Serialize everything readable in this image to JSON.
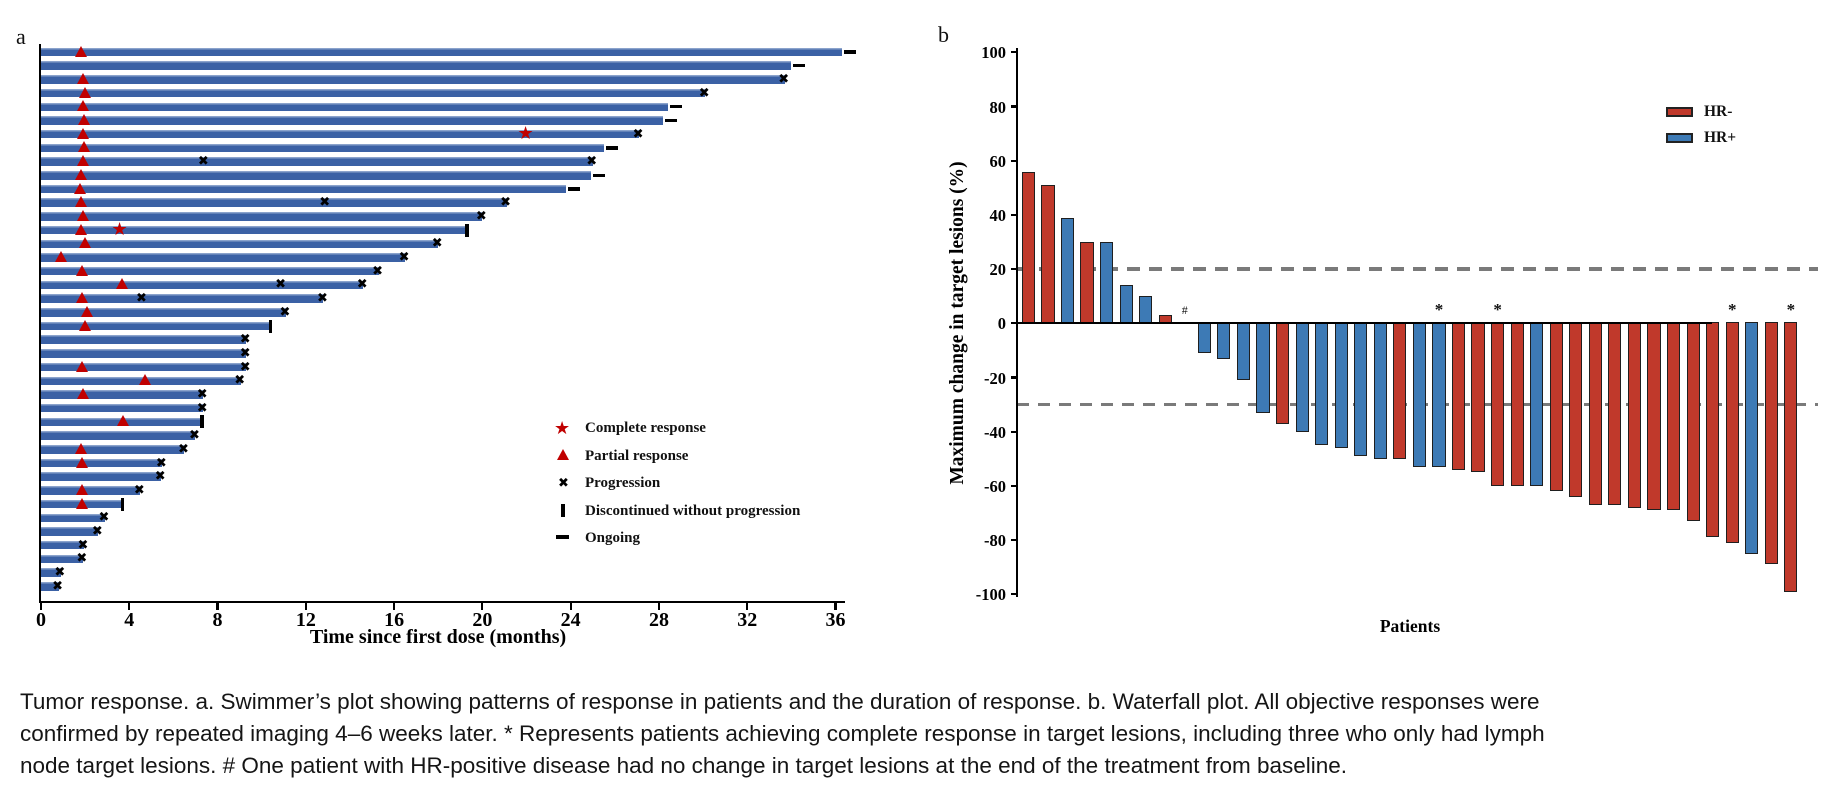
{
  "panels": {
    "a_label": "a",
    "b_label": "b"
  },
  "colors": {
    "swimmer_bar": "#3b61a5",
    "response_marker": "#c00000",
    "hr_negative": "#c0392b",
    "hr_positive": "#3d7ab5",
    "ref_line": "#7a7a7a",
    "axis": "#000000"
  },
  "caption": {
    "lines": [
      "Tumor response. a. Swimmer’s plot showing patterns of response in patients and the duration of response. b. Waterfall plot. All objective responses were",
      "confirmed by repeated imaging 4–6 weeks later. * Represents patients achieving complete response in target lesions, including three who only had lymph",
      "node target lesions. # One patient with HR-positive disease had no change in target lesions at the end of the treatment from baseline."
    ]
  },
  "chart_data": [
    {
      "type": "bar",
      "id": "swimmer-plot",
      "orientation": "horizontal",
      "xlabel": "Time since first dose (months)",
      "xlim": [
        0,
        38
      ],
      "xticks": [
        0,
        4,
        8,
        12,
        16,
        20,
        24,
        28,
        32,
        36
      ],
      "legend": [
        {
          "marker": "star",
          "label": "Complete response"
        },
        {
          "marker": "triangle",
          "label": "Partial response"
        },
        {
          "marker": "x",
          "label": "Progression"
        },
        {
          "marker": "vbar",
          "label": "Discontinued without progression"
        },
        {
          "marker": "dash",
          "label": "Ongoing"
        }
      ],
      "bars": [
        {
          "dur": 36.3,
          "end": "ongoing",
          "marks": [
            [
              "pr",
              1.8
            ]
          ]
        },
        {
          "dur": 34.0,
          "end": "ongoing",
          "marks": []
        },
        {
          "dur": 33.7,
          "end": "prog",
          "marks": [
            [
              "pr",
              1.9
            ]
          ]
        },
        {
          "dur": 30.1,
          "end": "prog",
          "marks": [
            [
              "pr",
              2.0
            ]
          ]
        },
        {
          "dur": 28.4,
          "end": "ongoing",
          "marks": [
            [
              "pr",
              1.9
            ]
          ]
        },
        {
          "dur": 28.2,
          "end": "ongoing",
          "marks": [
            [
              "pr",
              1.95
            ]
          ]
        },
        {
          "dur": 27.1,
          "end": "prog",
          "marks": [
            [
              "pr",
              1.9
            ],
            [
              "cr",
              22
            ]
          ]
        },
        {
          "dur": 25.5,
          "end": "ongoing",
          "marks": [
            [
              "pr",
              1.95
            ]
          ]
        },
        {
          "dur": 25.0,
          "end": "prog",
          "marks": [
            [
              "pr",
              1.9
            ],
            [
              "px",
              7.4
            ]
          ]
        },
        {
          "dur": 24.9,
          "end": "ongoing",
          "marks": [
            [
              "pr",
              1.8
            ]
          ]
        },
        {
          "dur": 23.8,
          "end": "ongoing",
          "marks": [
            [
              "pr",
              1.75
            ]
          ]
        },
        {
          "dur": 21.1,
          "end": "prog",
          "marks": [
            [
              "pr",
              1.8
            ],
            [
              "px",
              12.9
            ]
          ]
        },
        {
          "dur": 20.0,
          "end": "prog",
          "marks": [
            [
              "pr",
              1.9
            ]
          ]
        },
        {
          "dur": 19.3,
          "end": "disc",
          "marks": [
            [
              "pr",
              1.8
            ],
            [
              "cr",
              3.6
            ]
          ]
        },
        {
          "dur": 18.0,
          "end": "prog",
          "marks": [
            [
              "pr",
              2.0
            ]
          ]
        },
        {
          "dur": 16.5,
          "end": "prog",
          "marks": [
            [
              "pr",
              0.9
            ]
          ]
        },
        {
          "dur": 15.3,
          "end": "prog",
          "marks": [
            [
              "pr",
              1.85
            ]
          ]
        },
        {
          "dur": 14.6,
          "end": "prog",
          "marks": [
            [
              "pr",
              3.65
            ],
            [
              "px",
              10.9
            ]
          ]
        },
        {
          "dur": 12.8,
          "end": "prog",
          "marks": [
            [
              "pr",
              1.85
            ],
            [
              "px",
              4.6
            ]
          ]
        },
        {
          "dur": 11.1,
          "end": "prog",
          "marks": [
            [
              "pr",
              2.1
            ]
          ]
        },
        {
          "dur": 10.4,
          "end": "disc",
          "marks": [
            [
              "pr",
              2.0
            ]
          ]
        },
        {
          "dur": 9.3,
          "end": "prog",
          "marks": []
        },
        {
          "dur": 9.3,
          "end": "prog",
          "marks": []
        },
        {
          "dur": 9.3,
          "end": "prog",
          "marks": [
            [
              "pr",
              1.85
            ]
          ]
        },
        {
          "dur": 9.05,
          "end": "prog",
          "marks": [
            [
              "pr",
              4.7
            ]
          ]
        },
        {
          "dur": 7.35,
          "end": "prog",
          "marks": [
            [
              "pr",
              1.9
            ]
          ]
        },
        {
          "dur": 7.35,
          "end": "prog",
          "marks": []
        },
        {
          "dur": 7.3,
          "end": "disc",
          "marks": [
            [
              "pr",
              3.7
            ]
          ]
        },
        {
          "dur": 7.0,
          "end": "prog",
          "marks": []
        },
        {
          "dur": 6.5,
          "end": "prog",
          "marks": [
            [
              "pr",
              1.8
            ]
          ]
        },
        {
          "dur": 5.5,
          "end": "prog",
          "marks": [
            [
              "pr",
              1.85
            ]
          ]
        },
        {
          "dur": 5.45,
          "end": "prog",
          "marks": []
        },
        {
          "dur": 4.5,
          "end": "prog",
          "marks": [
            [
              "pr",
              1.85
            ]
          ]
        },
        {
          "dur": 3.7,
          "end": "disc",
          "marks": [
            [
              "pr",
              1.85
            ]
          ]
        },
        {
          "dur": 2.9,
          "end": "prog",
          "marks": []
        },
        {
          "dur": 2.6,
          "end": "prog",
          "marks": []
        },
        {
          "dur": 1.95,
          "end": "prog",
          "marks": []
        },
        {
          "dur": 1.9,
          "end": "prog",
          "marks": []
        },
        {
          "dur": 0.9,
          "end": "prog",
          "marks": []
        },
        {
          "dur": 0.8,
          "end": "prog",
          "marks": []
        }
      ]
    },
    {
      "type": "bar",
      "id": "waterfall-plot",
      "ylabel": "Maximum change in target lesions (%)",
      "xlabel": "Patients",
      "ylim": [
        -100,
        100
      ],
      "yticks": [
        100,
        80,
        60,
        40,
        20,
        0,
        -20,
        -40,
        -60,
        -80,
        -100
      ],
      "ref_lines": {
        "upper": 20,
        "lower": -30
      },
      "legend": [
        {
          "label": "HR-",
          "group": "HR-"
        },
        {
          "label": "HR+",
          "group": "HR+"
        }
      ],
      "patients": [
        {
          "value": 56,
          "group": "HR-",
          "note": ""
        },
        {
          "value": 51,
          "group": "HR-",
          "note": ""
        },
        {
          "value": 39,
          "group": "HR+",
          "note": ""
        },
        {
          "value": 30,
          "group": "HR-",
          "note": ""
        },
        {
          "value": 30,
          "group": "HR+",
          "note": ""
        },
        {
          "value": 14,
          "group": "HR+",
          "note": ""
        },
        {
          "value": 10,
          "group": "HR+",
          "note": ""
        },
        {
          "value": 3,
          "group": "HR-",
          "note": ""
        },
        {
          "value": 0,
          "group": "HR+",
          "note": "#"
        },
        {
          "value": -11,
          "group": "HR+",
          "note": ""
        },
        {
          "value": -13,
          "group": "HR+",
          "note": ""
        },
        {
          "value": -21,
          "group": "HR+",
          "note": ""
        },
        {
          "value": -33,
          "group": "HR+",
          "note": ""
        },
        {
          "value": -37,
          "group": "HR-",
          "note": ""
        },
        {
          "value": -40,
          "group": "HR+",
          "note": ""
        },
        {
          "value": -45,
          "group": "HR+",
          "note": ""
        },
        {
          "value": -46,
          "group": "HR+",
          "note": ""
        },
        {
          "value": -49,
          "group": "HR+",
          "note": ""
        },
        {
          "value": -50,
          "group": "HR+",
          "note": ""
        },
        {
          "value": -50,
          "group": "HR-",
          "note": ""
        },
        {
          "value": -53,
          "group": "HR+",
          "note": ""
        },
        {
          "value": -53,
          "group": "HR+",
          "note": "*"
        },
        {
          "value": -54,
          "group": "HR-",
          "note": ""
        },
        {
          "value": -55,
          "group": "HR-",
          "note": ""
        },
        {
          "value": -60,
          "group": "HR-",
          "note": "*"
        },
        {
          "value": -60,
          "group": "HR-",
          "note": ""
        },
        {
          "value": -60,
          "group": "HR+",
          "note": ""
        },
        {
          "value": -62,
          "group": "HR-",
          "note": ""
        },
        {
          "value": -64,
          "group": "HR-",
          "note": ""
        },
        {
          "value": -67,
          "group": "HR-",
          "note": ""
        },
        {
          "value": -67,
          "group": "HR-",
          "note": ""
        },
        {
          "value": -68,
          "group": "HR-",
          "note": ""
        },
        {
          "value": -69,
          "group": "HR-",
          "note": ""
        },
        {
          "value": -69,
          "group": "HR-",
          "note": ""
        },
        {
          "value": -73,
          "group": "HR-",
          "note": ""
        },
        {
          "value": -79,
          "group": "HR-",
          "note": ""
        },
        {
          "value": -81,
          "group": "HR-",
          "note": "*"
        },
        {
          "value": -85,
          "group": "HR+",
          "note": ""
        },
        {
          "value": -89,
          "group": "HR-",
          "note": ""
        },
        {
          "value": -99,
          "group": "HR-",
          "note": "*"
        }
      ]
    }
  ]
}
